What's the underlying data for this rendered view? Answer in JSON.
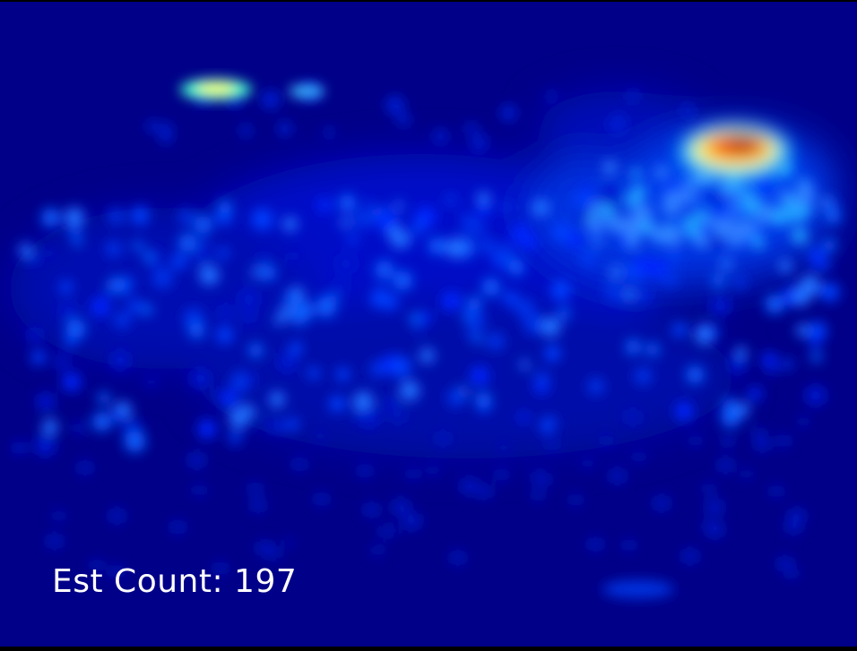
{
  "overlay": {
    "count_label": "Est Count: 197"
  },
  "colors": {
    "background": "#000080",
    "frame_border": "#000000",
    "text": "#ffffff",
    "colormap": "jet"
  }
}
